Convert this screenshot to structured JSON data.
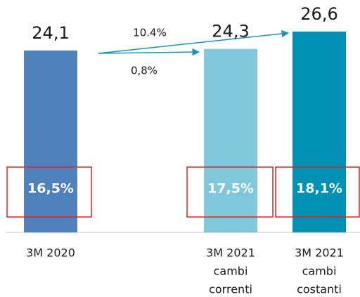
{
  "chart_data": {
    "type": "bar",
    "categories": [
      [
        "3M 2020"
      ],
      [
        "3M 2021",
        "cambi",
        "correnti"
      ],
      [
        "3M 2021",
        "cambi",
        "costanti"
      ]
    ],
    "values": [
      24.1,
      24.3,
      26.6
    ],
    "value_labels": [
      "24,1",
      "24,3",
      "26,6"
    ],
    "colors": [
      "#4f81bd",
      "#7fc8dc",
      "#0091b5"
    ],
    "inner_labels": [
      "16,5%",
      "17,5%",
      "18,1%"
    ],
    "annotations": [
      "10.4%",
      "0,8%"
    ]
  }
}
